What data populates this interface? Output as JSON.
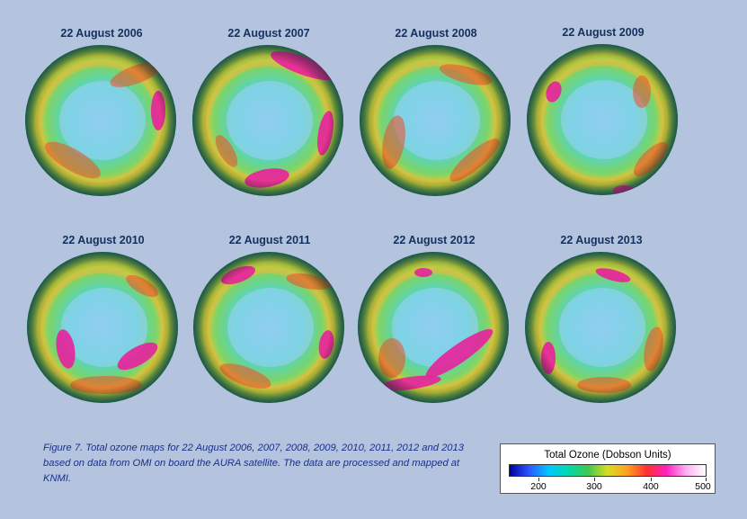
{
  "maps": [
    {
      "title": "22 August 2006"
    },
    {
      "title": "22 August 2007"
    },
    {
      "title": "22 August 2008"
    },
    {
      "title": "22 August 2009"
    },
    {
      "title": "22 August 2010"
    },
    {
      "title": "22 August 2011"
    },
    {
      "title": "22 August 2012"
    },
    {
      "title": "22 August 2013"
    }
  ],
  "caption": "Figure 7. Total ozone maps for 22 August 2006, 2007, 2008, 2009, 2010, 2011, 2012 and 2013 based on data from OMI on board the AURA satellite. The data are processed and mapped at KNMI.",
  "legend": {
    "title": "Total Ozone (Dobson Units)",
    "ticks": [
      "200",
      "300",
      "400",
      "500"
    ],
    "colors": [
      "#0000a0",
      "#2a5aff",
      "#00c8ff",
      "#00d8b0",
      "#40c850",
      "#d8dc20",
      "#ffa020",
      "#ff3030",
      "#ff20c0",
      "#ffb0f0",
      "#ffffff"
    ]
  },
  "colors": {
    "background": "#b4c4de",
    "title_text": "#16305e",
    "caption_text": "#1a2f8a"
  }
}
